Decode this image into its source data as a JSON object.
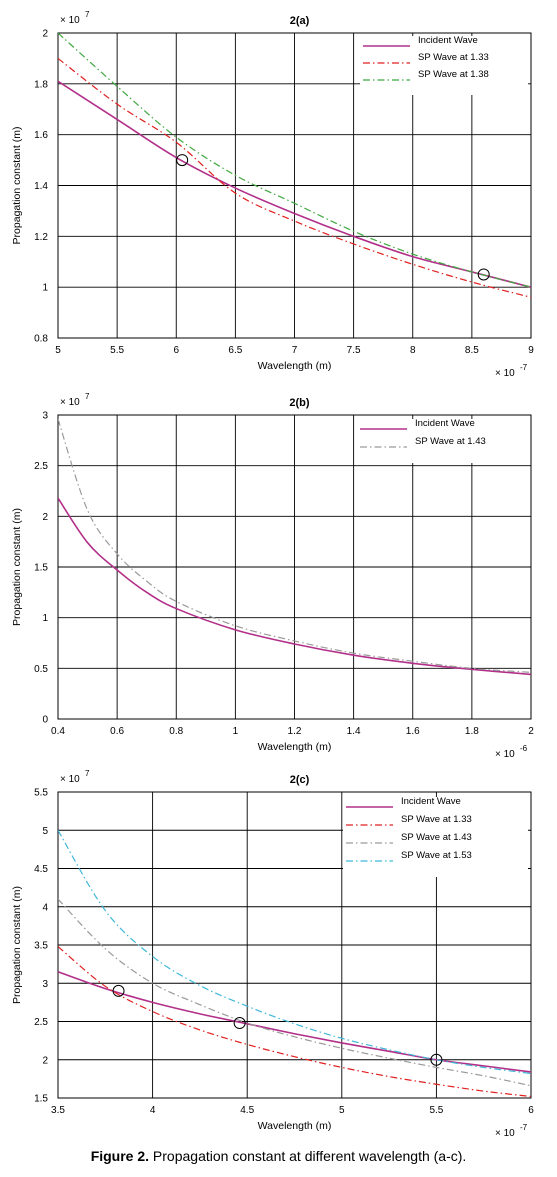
{
  "figure": {
    "caption_bold": "Figure 2.",
    "caption_text": " Propagation constant at different wavelength (a-c)."
  },
  "chart_data": [
    {
      "type": "line",
      "title": "2(a)",
      "xlabel": "Wavelength (m)",
      "ylabel": "Propagation constant (m)",
      "x_multiplier": "× 10",
      "x_exponent": "-7",
      "y_multiplier": "× 10",
      "y_exponent": "7",
      "xlim": [
        5,
        9
      ],
      "ylim": [
        0.8,
        2
      ],
      "xticks": [
        5,
        5.5,
        6,
        6.5,
        7,
        7.5,
        8,
        8.5,
        9
      ],
      "yticks": [
        0.8,
        1,
        1.2,
        1.4,
        1.6,
        1.8,
        2
      ],
      "grid": true,
      "legend_position": "top-right",
      "series": [
        {
          "name": "Incident Wave",
          "color": "#b2308a",
          "dash": "solid",
          "x": [
            5,
            5.5,
            6,
            6.5,
            7,
            7.5,
            8,
            8.5,
            9
          ],
          "y": [
            1.81,
            1.66,
            1.51,
            1.39,
            1.29,
            1.2,
            1.12,
            1.06,
            1.0
          ]
        },
        {
          "name": "SP Wave at 1.33",
          "color": "#e02020",
          "dash": "dashdot",
          "x": [
            5,
            5.5,
            6,
            6.5,
            7,
            7.5,
            8,
            8.5,
            9
          ],
          "y": [
            1.9,
            1.72,
            1.57,
            1.37,
            1.26,
            1.17,
            1.09,
            1.02,
            0.96
          ]
        },
        {
          "name": "SP Wave at 1.38",
          "color": "#3fa83f",
          "dash": "dashdot",
          "x": [
            5,
            5.5,
            6,
            6.5,
            7,
            7.5,
            8,
            8.5,
            9
          ],
          "y": [
            2.0,
            1.79,
            1.59,
            1.44,
            1.33,
            1.22,
            1.13,
            1.06,
            1.0
          ]
        }
      ],
      "markers": [
        {
          "x": 6.05,
          "y": 1.5
        },
        {
          "x": 8.6,
          "y": 1.05
        }
      ]
    },
    {
      "type": "line",
      "title": "2(b)",
      "xlabel": "Wavelength (m)",
      "ylabel": "Propagation constant (m)",
      "x_multiplier": "× 10",
      "x_exponent": "-6",
      "y_multiplier": "× 10",
      "y_exponent": "7",
      "xlim": [
        0.4,
        2
      ],
      "ylim": [
        0,
        3
      ],
      "xticks": [
        0.4,
        0.6,
        0.8,
        1,
        1.2,
        1.4,
        1.6,
        1.8,
        2
      ],
      "yticks": [
        0,
        0.5,
        1,
        1.5,
        2,
        2.5,
        3
      ],
      "grid": true,
      "legend_position": "top-right",
      "series": [
        {
          "name": "Incident Wave",
          "color": "#b2308a",
          "dash": "solid",
          "x": [
            0.4,
            0.5,
            0.6,
            0.7,
            0.8,
            1.0,
            1.2,
            1.4,
            1.6,
            1.8,
            2.0
          ],
          "y": [
            2.18,
            1.74,
            1.47,
            1.25,
            1.09,
            0.88,
            0.74,
            0.63,
            0.55,
            0.49,
            0.44
          ]
        },
        {
          "name": "SP Wave at 1.43",
          "color": "#9a9a9a",
          "dash": "dashdot",
          "x": [
            0.4,
            0.5,
            0.6,
            0.7,
            0.8,
            1.0,
            1.2,
            1.4,
            1.6,
            1.8,
            2.0
          ],
          "y": [
            2.96,
            2.06,
            1.63,
            1.36,
            1.16,
            0.92,
            0.77,
            0.65,
            0.57,
            0.5,
            0.46
          ]
        }
      ]
    },
    {
      "type": "line",
      "title": "2(c)",
      "xlabel": "Wavelength (m)",
      "ylabel": "Propagation constant (m)",
      "x_multiplier": "× 10",
      "x_exponent": "-7",
      "y_multiplier": "× 10",
      "y_exponent": "7",
      "xlim": [
        3.5,
        6
      ],
      "ylim": [
        1.5,
        5.5
      ],
      "xticks": [
        3.5,
        4,
        4.5,
        5,
        5.5,
        6
      ],
      "yticks": [
        1.5,
        2,
        2.5,
        3,
        3.5,
        4,
        4.5,
        5,
        5.5
      ],
      "grid": true,
      "legend_position": "top-right",
      "series": [
        {
          "name": "Incident Wave",
          "color": "#b2308a",
          "dash": "solid",
          "x": [
            3.5,
            3.75,
            4,
            4.25,
            4.5,
            4.75,
            5,
            5.25,
            5.5,
            5.75,
            6
          ],
          "y": [
            3.15,
            2.93,
            2.75,
            2.6,
            2.47,
            2.34,
            2.22,
            2.11,
            2.0,
            1.92,
            1.84
          ]
        },
        {
          "name": "SP Wave at 1.33",
          "color": "#e02020",
          "dash": "dashdot",
          "x": [
            3.5,
            3.75,
            4,
            4.25,
            4.5,
            4.75,
            5,
            5.25,
            5.5,
            5.75,
            6
          ],
          "y": [
            3.48,
            2.96,
            2.63,
            2.39,
            2.2,
            2.04,
            1.9,
            1.78,
            1.68,
            1.59,
            1.52
          ]
        },
        {
          "name": "SP Wave at 1.43",
          "color": "#9a9a9a",
          "dash": "dashdot",
          "x": [
            3.5,
            3.75,
            4,
            4.25,
            4.5,
            4.75,
            5,
            5.25,
            5.5,
            5.75,
            6
          ],
          "y": [
            4.1,
            3.45,
            3.0,
            2.72,
            2.48,
            2.3,
            2.15,
            2.02,
            1.9,
            1.79,
            1.66
          ]
        },
        {
          "name": "SP Wave at 1.53",
          "color": "#3fb8d8",
          "dash": "dashdot",
          "x": [
            3.5,
            3.75,
            4,
            4.25,
            4.5,
            4.75,
            5,
            5.25,
            5.5,
            5.75,
            6
          ],
          "y": [
            5.0,
            3.95,
            3.35,
            2.97,
            2.7,
            2.47,
            2.28,
            2.13,
            2.0,
            1.9,
            1.82
          ]
        }
      ],
      "markers": [
        {
          "x": 3.82,
          "y": 2.9
        },
        {
          "x": 4.46,
          "y": 2.48
        },
        {
          "x": 5.5,
          "y": 2.0
        }
      ]
    }
  ]
}
